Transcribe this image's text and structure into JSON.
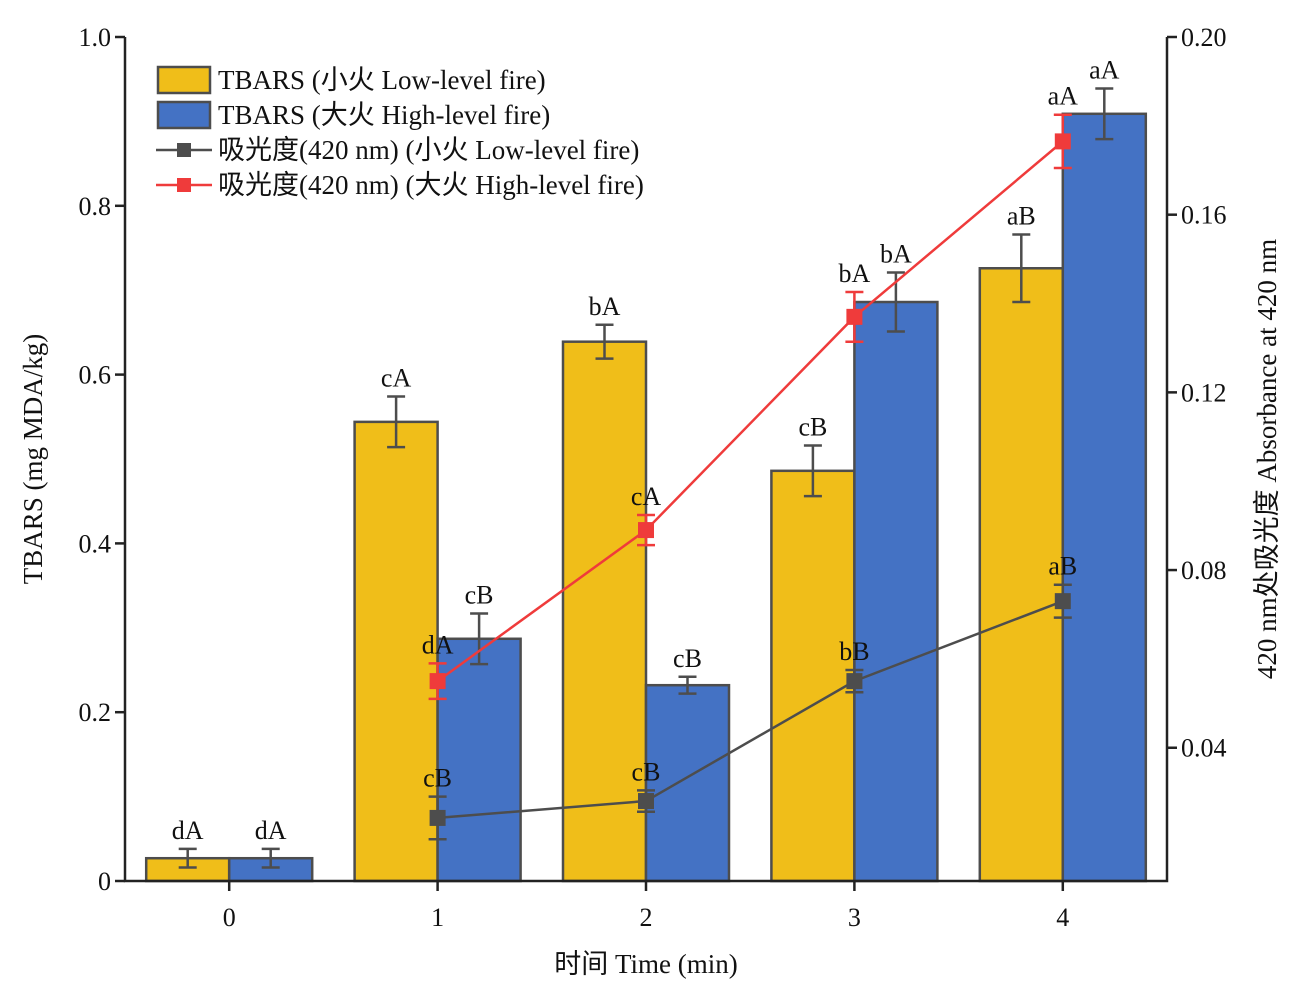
{
  "chart_data": {
    "type": "bar",
    "xlabel": "时间 Time (min)",
    "ylabel": "TBARS (mg MDA/kg)",
    "ylabel_right": "420 nm处吸光度 Absorbance at 420 nm",
    "categories": [
      "0",
      "1",
      "2",
      "3",
      "4"
    ],
    "ylim": [
      0,
      1.0
    ],
    "yticks": [
      "0",
      "0.2",
      "0.4",
      "0.6",
      "0.8",
      "1.0"
    ],
    "ylim_right": [
      0.01,
      0.2
    ],
    "yticks_right": [
      "0.04",
      "0.08",
      "0.12",
      "0.16",
      "0.20"
    ],
    "yticks_right_values": [
      0.04,
      0.08,
      0.12,
      0.16,
      0.2
    ],
    "legend_position": "top-left",
    "series": [
      {
        "name": "TBARS (小火 Low-level fire)",
        "kind": "bar",
        "axis": "left",
        "color": "#F0BE19",
        "values": [
          0.027,
          0.544,
          0.639,
          0.486,
          0.726
        ],
        "errors": [
          0.011,
          0.03,
          0.02,
          0.03,
          0.04
        ],
        "labels": [
          "dA",
          "cA",
          "bA",
          "cB",
          "aB"
        ]
      },
      {
        "name": "TBARS (大火 High-level fire)",
        "kind": "bar",
        "axis": "left",
        "color": "#4472C4",
        "values": [
          0.027,
          0.287,
          0.232,
          0.686,
          0.909
        ],
        "errors": [
          0.011,
          0.03,
          0.01,
          0.035,
          0.03
        ],
        "labels": [
          "dA",
          "cB",
          "cB",
          "bA",
          "aA"
        ]
      },
      {
        "name": "吸光度(420 nm) (小火 Low-level fire)",
        "kind": "line",
        "axis": "right",
        "color": "#4D4D4D",
        "x": [
          "1",
          "2",
          "3",
          "4"
        ],
        "values": [
          0.0242,
          0.028,
          0.055,
          0.073
        ],
        "errors": [
          0.0048,
          0.0024,
          0.0025,
          0.0037
        ],
        "labels": [
          "cB",
          "cB",
          "bB",
          "aB"
        ]
      },
      {
        "name": "吸光度(420 nm) (大火 High-level fire)",
        "kind": "line",
        "axis": "right",
        "color": "#EF3B3B",
        "x": [
          "1",
          "2",
          "3",
          "4"
        ],
        "values": [
          0.055,
          0.089,
          0.137,
          0.1765
        ],
        "errors": [
          0.004,
          0.0034,
          0.0056,
          0.006
        ],
        "labels": [
          "dA",
          "cA",
          "bA",
          "aA"
        ]
      }
    ]
  }
}
